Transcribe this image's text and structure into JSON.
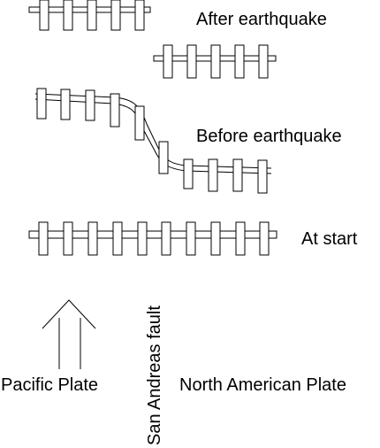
{
  "labels": {
    "after": "After earthquake",
    "before": "Before earthquake",
    "start": "At start",
    "fault": "San Andreas fault",
    "pacific": "Pacific Plate",
    "north_american": "North American Plate"
  },
  "colors": {
    "stroke": "#000000",
    "background": "#ffffff"
  },
  "icons": {
    "direction": "up-arrow-icon"
  }
}
